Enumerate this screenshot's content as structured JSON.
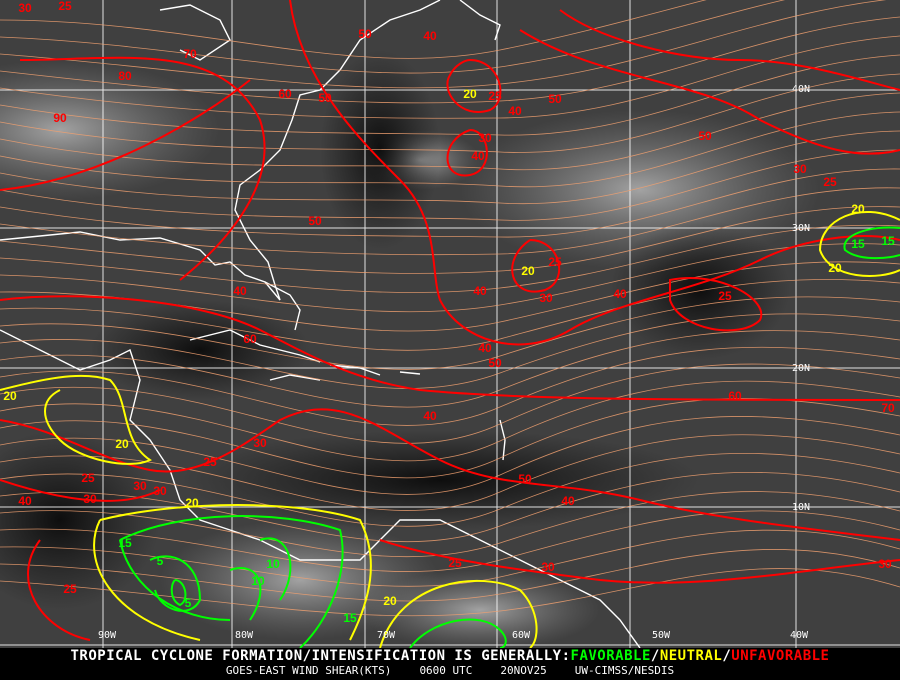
{
  "map": {
    "grid_labels_lon": [
      "90W",
      "80W",
      "70W",
      "60W",
      "50W",
      "40W"
    ],
    "grid_labels_lat": [
      "40N",
      "30N",
      "20N",
      "10N"
    ],
    "colors": {
      "unfavorable": "#ff0000",
      "neutral": "#ffff00",
      "favorable": "#00ff00",
      "streamline": "#f0a070",
      "coast": "#ffffff",
      "grid": "#ffffff"
    },
    "contour_labels": [
      "30",
      "25",
      "70",
      "80",
      "90",
      "60",
      "50",
      "50",
      "40",
      "20",
      "25",
      "40",
      "50",
      "30",
      "40",
      "50",
      "30",
      "25",
      "20",
      "15",
      "20",
      "25",
      "30",
      "40",
      "25",
      "50",
      "40",
      "60",
      "70",
      "60",
      "40",
      "50",
      "40",
      "30",
      "20",
      "25",
      "30",
      "25",
      "40",
      "30",
      "20",
      "15",
      "5",
      "10",
      "5",
      "10",
      "20",
      "15",
      "40",
      "25",
      "30",
      "50",
      "40",
      "30",
      "20",
      "15",
      "20",
      "30",
      "25"
    ],
    "contour_colors": [
      "red",
      "red",
      "red",
      "red",
      "red",
      "red",
      "red",
      "red",
      "red",
      "yellow",
      "red",
      "red",
      "red",
      "red",
      "red",
      "red",
      "red",
      "red",
      "yellow",
      "green",
      "yellow",
      "red",
      "red",
      "red",
      "red",
      "red",
      "red",
      "red",
      "red",
      "red",
      "red",
      "red",
      "red",
      "red",
      "yellow",
      "red",
      "red",
      "red",
      "red",
      "red",
      "yellow",
      "green",
      "green",
      "green",
      "green",
      "green",
      "yellow",
      "green",
      "red",
      "red",
      "red",
      "red",
      "red",
      "red",
      "yellow",
      "green",
      "yellow",
      "red",
      "red"
    ]
  },
  "footer": {
    "headline_prefix": "TROPICAL CYCLONE FORMATION/INTENSIFICATION IS GENERALLY:",
    "favorable": "FAVORABLE",
    "sep1": "/",
    "neutral": "NEUTRAL",
    "sep2": "/",
    "unfavorable": "UNFAVORABLE",
    "product": "GOES-EAST WIND SHEAR(KTS)",
    "time": "0600 UTC",
    "date": "20NOV25",
    "source": "UW-CIMSS/NESDIS"
  }
}
